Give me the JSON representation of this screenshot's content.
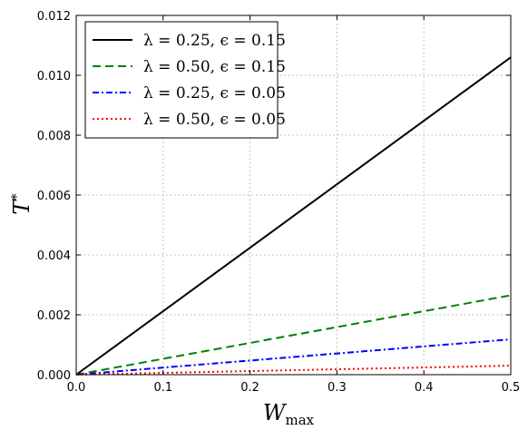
{
  "chart_data": {
    "type": "line",
    "xlabel": "W",
    "xlabel_sub": "max",
    "ylabel": "T",
    "ylabel_sup": "*",
    "xlim": [
      0.0,
      0.5
    ],
    "ylim": [
      0.0,
      0.012
    ],
    "xticks": [
      "0.0",
      "0.1",
      "0.2",
      "0.3",
      "0.4",
      "0.5"
    ],
    "yticks": [
      "0.000",
      "0.002",
      "0.004",
      "0.006",
      "0.008",
      "0.010",
      "0.012"
    ],
    "grid": true,
    "legend_position": "top-left",
    "series": [
      {
        "name": "λ = 0.25, ϵ = 0.15",
        "color": "#000000",
        "dash": "solid",
        "x": [
          0.0,
          0.5
        ],
        "y": [
          0.0,
          0.0106
        ]
      },
      {
        "name": "λ = 0.50, ϵ = 0.15",
        "color": "#008000",
        "dash": "dashed",
        "x": [
          0.0,
          0.5
        ],
        "y": [
          0.0,
          0.00265
        ]
      },
      {
        "name": "λ = 0.25, ϵ = 0.05",
        "color": "#0000ff",
        "dash": "dashdot",
        "x": [
          0.0,
          0.5
        ],
        "y": [
          0.0,
          0.00118
        ]
      },
      {
        "name": "λ = 0.50, ϵ = 0.05",
        "color": "#ff0000",
        "dash": "dotted",
        "x": [
          0.0,
          0.5
        ],
        "y": [
          0.0,
          0.0003
        ]
      }
    ]
  }
}
